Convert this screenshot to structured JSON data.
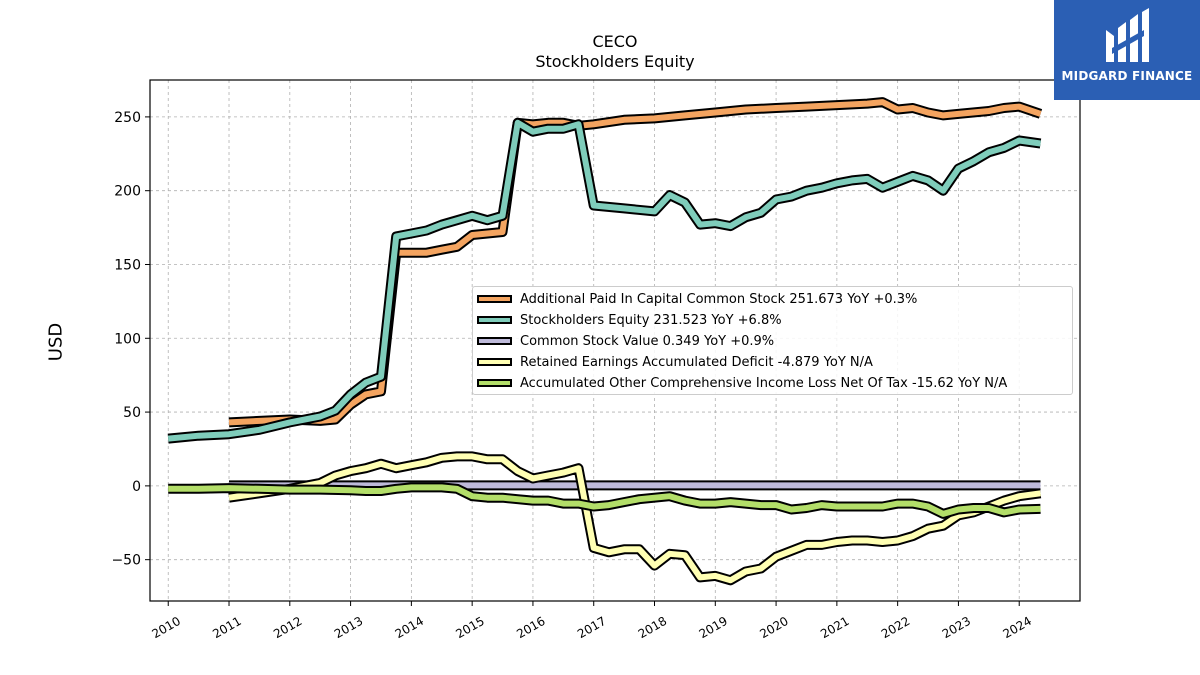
{
  "chart_data": {
    "type": "line",
    "title": "CECO",
    "subtitle": "Stockholders  Equity",
    "ylabel": "USD",
    "xlabel": "",
    "xlim": [
      2009.7,
      2025.0
    ],
    "ylim": [
      -78,
      275
    ],
    "grid": true,
    "legend_position": "center-right",
    "x_ticks": [
      "2010",
      "2011",
      "2012",
      "2013",
      "2014",
      "2015",
      "2016",
      "2017",
      "2018",
      "2019",
      "2020",
      "2021",
      "2022",
      "2023",
      "2024"
    ],
    "y_ticks": [
      "−50",
      "0",
      "50",
      "100",
      "150",
      "200",
      "250"
    ],
    "series": [
      {
        "name": "Additional Paid In Capital Common Stock",
        "legend_label": "Additional Paid In Capital Common Stock  251.673 YoY +0.3%",
        "color": "#F4A460",
        "x": [
          2011.0,
          2011.5,
          2012.0,
          2012.5,
          2012.75,
          2013.0,
          2013.25,
          2013.5,
          2013.75,
          2014.0,
          2014.25,
          2014.5,
          2014.75,
          2015.0,
          2015.25,
          2015.5,
          2015.75,
          2016.0,
          2016.25,
          2016.5,
          2016.75,
          2017.0,
          2017.5,
          2018.0,
          2018.5,
          2019.0,
          2019.5,
          2020.0,
          2020.5,
          2021.0,
          2021.5,
          2021.75,
          2022.0,
          2022.25,
          2022.5,
          2022.75,
          2023.0,
          2023.5,
          2023.75,
          2024.0,
          2024.35
        ],
        "values": [
          43,
          44,
          45,
          44,
          45,
          55,
          62,
          64,
          158,
          158,
          158,
          160,
          162,
          170,
          171,
          172,
          246,
          245,
          246,
          246,
          244,
          245,
          248,
          249,
          251,
          253,
          255,
          256,
          257,
          258,
          259,
          260,
          255,
          256,
          253,
          251,
          252,
          254,
          256,
          257,
          252
        ]
      },
      {
        "name": "Stockholders Equity",
        "legend_label": "Stockholders Equity  231.523 YoY +6.8%",
        "color": "#7FCDBB",
        "x": [
          2010.0,
          2010.5,
          2011.0,
          2011.5,
          2012.0,
          2012.5,
          2012.75,
          2013.0,
          2013.25,
          2013.5,
          2013.75,
          2014.0,
          2014.25,
          2014.5,
          2014.75,
          2015.0,
          2015.25,
          2015.5,
          2015.75,
          2016.0,
          2016.25,
          2016.5,
          2016.75,
          2017.0,
          2017.5,
          2018.0,
          2018.25,
          2018.5,
          2018.75,
          2019.0,
          2019.25,
          2019.5,
          2019.75,
          2020.0,
          2020.25,
          2020.5,
          2020.75,
          2021.0,
          2021.25,
          2021.5,
          2021.75,
          2022.0,
          2022.25,
          2022.5,
          2022.75,
          2023.0,
          2023.25,
          2023.5,
          2023.75,
          2024.0,
          2024.35
        ],
        "values": [
          32,
          34,
          35,
          38,
          43,
          47,
          51,
          62,
          70,
          74,
          169,
          171,
          173,
          177,
          180,
          183,
          180,
          183,
          246,
          240,
          242,
          242,
          245,
          190,
          188,
          186,
          197,
          192,
          177,
          178,
          176,
          182,
          185,
          194,
          196,
          200,
          202,
          205,
          207,
          208,
          202,
          206,
          210,
          207,
          200,
          215,
          220,
          226,
          229,
          234,
          232
        ]
      },
      {
        "name": "Common Stock Value",
        "legend_label": "Common Stock Value  0.349 YoY +0.9%",
        "color": "#BEBADA",
        "x": [
          2011.0,
          2024.35
        ],
        "values": [
          0.35,
          0.35
        ]
      },
      {
        "name": "Retained Earnings Accumulated Deficit",
        "legend_label": "Retained Earnings Accumulated Deficit  -4.879 YoY N/A",
        "color": "#FFFFB3",
        "x": [
          2011.0,
          2011.5,
          2012.0,
          2012.5,
          2012.75,
          2013.0,
          2013.25,
          2013.5,
          2013.75,
          2014.0,
          2014.25,
          2014.5,
          2014.75,
          2015.0,
          2015.25,
          2015.5,
          2015.75,
          2016.0,
          2016.25,
          2016.5,
          2016.75,
          2017.0,
          2017.25,
          2017.5,
          2017.75,
          2018.0,
          2018.25,
          2018.5,
          2018.75,
          2019.0,
          2019.25,
          2019.5,
          2019.75,
          2020.0,
          2020.25,
          2020.5,
          2020.75,
          2021.0,
          2021.25,
          2021.5,
          2021.75,
          2022.0,
          2022.25,
          2022.5,
          2022.75,
          2023.0,
          2023.25,
          2023.5,
          2023.75,
          2024.0,
          2024.35
        ],
        "values": [
          -8,
          -5,
          -2,
          2,
          7,
          10,
          12,
          15,
          12,
          14,
          16,
          19,
          20,
          20,
          18,
          18,
          10,
          5,
          7,
          9,
          12,
          -42,
          -45,
          -43,
          -43,
          -54,
          -46,
          -47,
          -62,
          -61,
          -64,
          -58,
          -56,
          -48,
          -44,
          -40,
          -40,
          -38,
          -37,
          -37,
          -38,
          -37,
          -34,
          -29,
          -27,
          -20,
          -18,
          -14,
          -10,
          -7,
          -5
        ]
      },
      {
        "name": "Accumulated Other Comprehensive Income Loss Net Of Tax",
        "legend_label": "Accumulated Other Comprehensive Income Loss Net Of Tax  -15.62 YoY N/A",
        "color": "#B3DE69",
        "x": [
          2010.0,
          2010.5,
          2011.0,
          2011.5,
          2012.0,
          2012.5,
          2013.0,
          2013.25,
          2013.5,
          2013.75,
          2014.0,
          2014.5,
          2014.75,
          2015.0,
          2015.25,
          2015.5,
          2015.75,
          2016.0,
          2016.25,
          2016.5,
          2016.75,
          2017.0,
          2017.25,
          2017.5,
          2017.75,
          2018.0,
          2018.25,
          2018.5,
          2018.75,
          2019.0,
          2019.25,
          2019.5,
          2019.75,
          2020.0,
          2020.25,
          2020.5,
          2020.75,
          2021.0,
          2021.25,
          2021.5,
          2021.75,
          2022.0,
          2022.25,
          2022.5,
          2022.75,
          2023.0,
          2023.25,
          2023.5,
          2023.75,
          2024.0,
          2024.35
        ],
        "values": [
          -2,
          -2,
          -1.5,
          -2,
          -2.5,
          -2.5,
          -3,
          -3.5,
          -3.5,
          -2,
          -1,
          -1,
          -2,
          -7,
          -8,
          -8,
          -9,
          -10,
          -10,
          -12,
          -12,
          -14,
          -13,
          -11,
          -9,
          -8,
          -7,
          -10,
          -12,
          -12,
          -11,
          -12,
          -13,
          -13,
          -16,
          -15,
          -13,
          -14,
          -14,
          -14,
          -14,
          -12,
          -12,
          -14,
          -19,
          -16,
          -15,
          -15,
          -18,
          -16,
          -15.6
        ]
      }
    ]
  },
  "logo": {
    "text": "MIDGARD FINANCE",
    "color": "#2B5FB4"
  }
}
